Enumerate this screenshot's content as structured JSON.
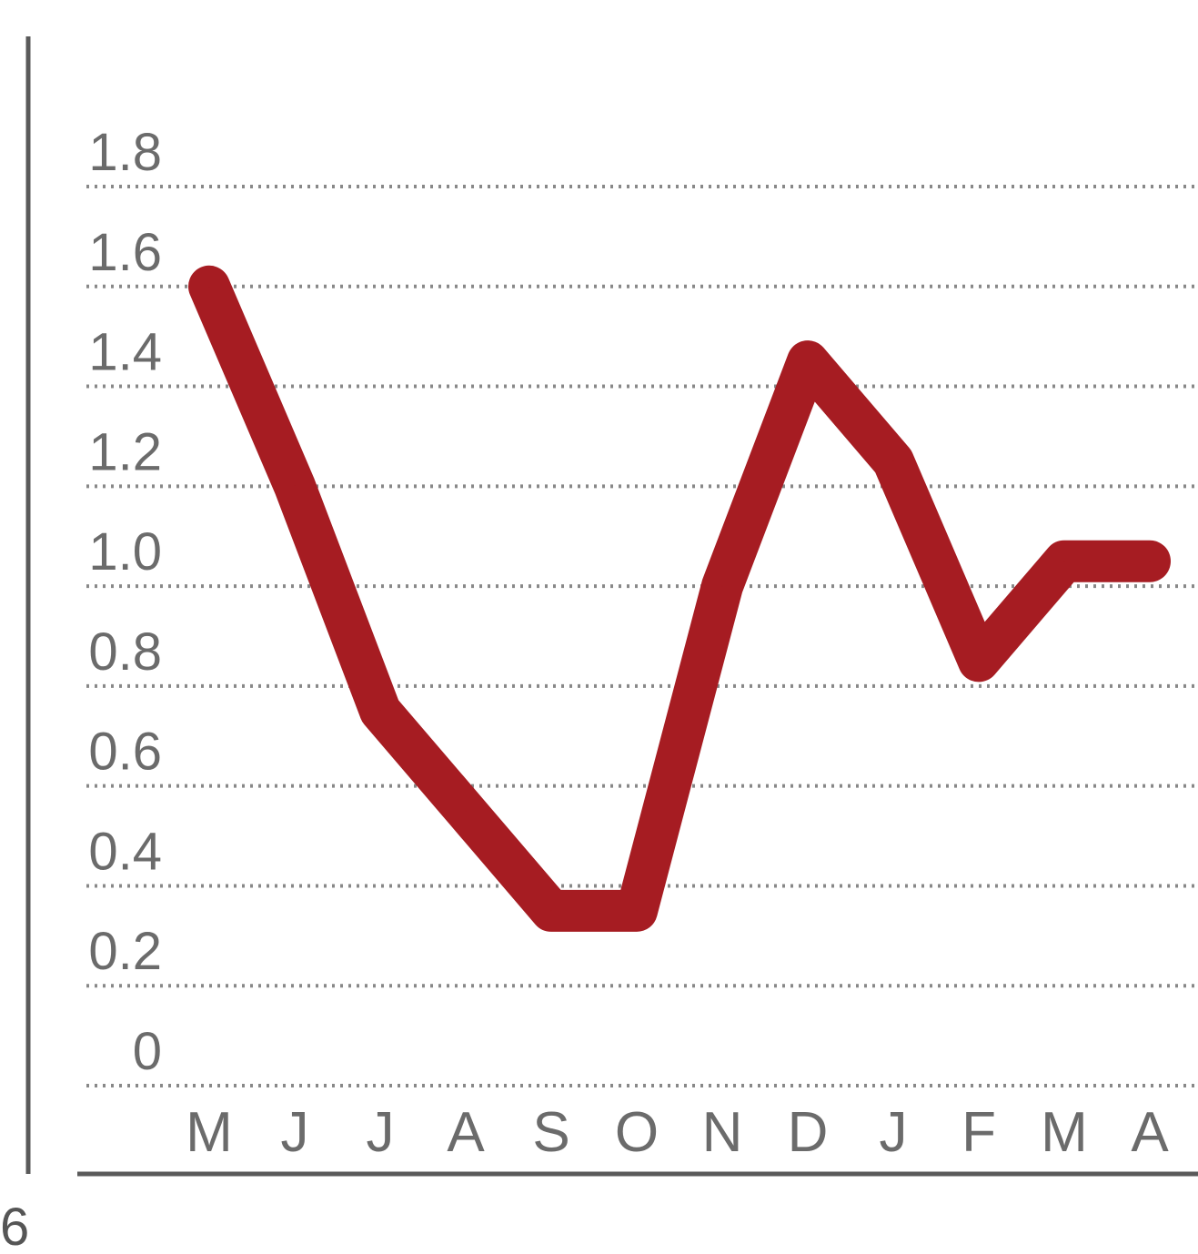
{
  "chart_data": {
    "type": "line",
    "categories": [
      "M",
      "J",
      "J",
      "A",
      "S",
      "O",
      "N",
      "D",
      "J",
      "F",
      "M",
      "A"
    ],
    "series": [
      {
        "values": [
          1.6,
          1.2,
          0.75,
          0.55,
          0.35,
          0.35,
          1.0,
          1.45,
          1.25,
          0.85,
          1.05,
          1.05
        ],
        "color": "#a61c22"
      }
    ],
    "ylim": [
      0,
      1.8
    ],
    "yticks": [
      0,
      0.2,
      0.4,
      0.6,
      0.8,
      1.0,
      1.2,
      1.4,
      1.6,
      1.8
    ],
    "ytick_labels": [
      "0",
      "0.2",
      "0.4",
      "0.6",
      "0.8",
      "1.0",
      "1.2",
      "1.4",
      "1.6",
      "1.8"
    ],
    "grid": true,
    "grid_style": "dotted",
    "title": "",
    "xlabel": "",
    "ylabel": ""
  },
  "edge_label": "6"
}
